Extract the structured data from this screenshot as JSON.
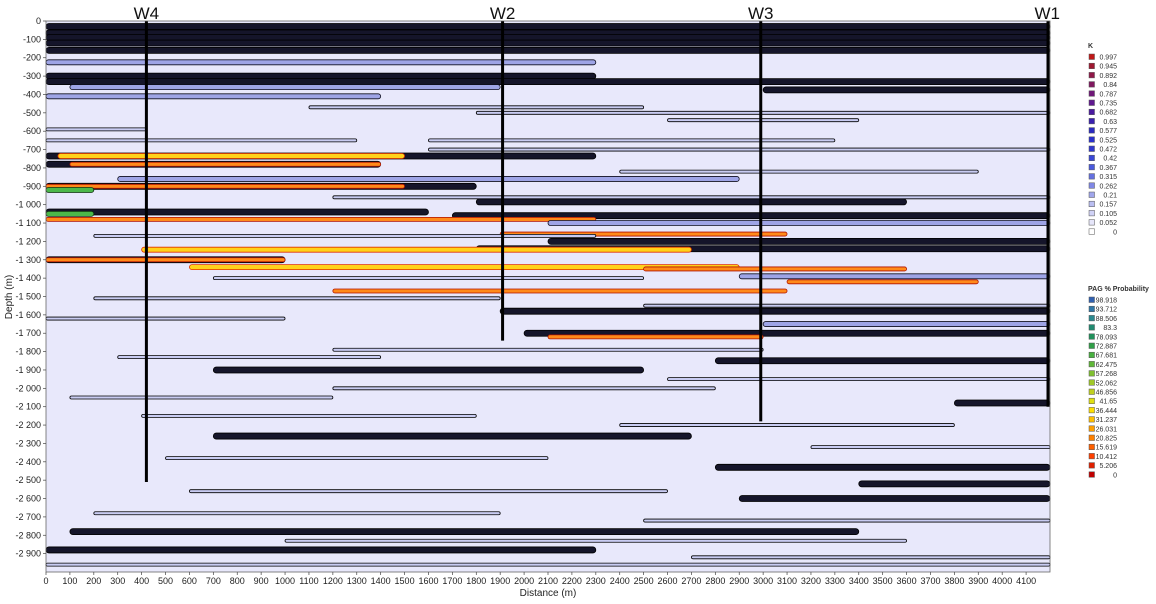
{
  "chart_data": {
    "type": "heatmap",
    "xlabel": "Distance (m)",
    "ylabel": "Depth (m)",
    "xlim": [
      0,
      4200
    ],
    "ylim": [
      -3000,
      0
    ],
    "x_ticks": [
      0,
      100,
      200,
      300,
      400,
      500,
      600,
      700,
      800,
      900,
      1000,
      1100,
      1200,
      1300,
      1400,
      1500,
      1600,
      1700,
      1800,
      1900,
      2000,
      2100,
      2200,
      2300,
      2400,
      2500,
      2600,
      2700,
      2800,
      2900,
      3000,
      3100,
      3200,
      3300,
      3400,
      3500,
      3600,
      3700,
      3800,
      3900,
      4000,
      4100
    ],
    "y_ticks": [
      0,
      -100,
      -200,
      -300,
      -400,
      -500,
      -600,
      -700,
      -800,
      -900,
      -1000,
      -1100,
      -1200,
      -1300,
      -1400,
      -1500,
      -1600,
      -1700,
      -1800,
      -1900,
      -2000,
      -2100,
      -2200,
      -2300,
      -2400,
      -2500,
      -2600,
      -2700,
      -2800,
      -2900
    ],
    "wells": [
      {
        "name": "W4",
        "x": 420,
        "bottom": -2510
      },
      {
        "name": "W2",
        "x": 1910,
        "bottom": -1740
      },
      {
        "name": "W3",
        "x": 2990,
        "bottom": -2180
      },
      {
        "name": "W1",
        "x": 4200,
        "bottom": -2100
      }
    ],
    "legends": [
      {
        "title": "K",
        "values": [
          "0.997",
          "0.945",
          "0.892",
          "0.84",
          "0.787",
          "0.735",
          "0.682",
          "0.63",
          "0.577",
          "0.525",
          "0.472",
          "0.42",
          "0.367",
          "0.315",
          "0.262",
          "0.21",
          "0.157",
          "0.105",
          "0.052",
          "0"
        ],
        "colors": [
          "#c01818",
          "#a01830",
          "#901848",
          "#801860",
          "#701878",
          "#601890",
          "#4a1aa0",
          "#3a20b0",
          "#2a2ac0",
          "#2a30cc",
          "#3038d0",
          "#3a48d8",
          "#4a5ade",
          "#6470e0",
          "#8088e6",
          "#a0a6ec",
          "#babef2",
          "#d0d2f6",
          "#e6e6fa",
          "#ffffff"
        ]
      },
      {
        "title": "PAG % Probability",
        "values": [
          "98.918",
          "93.712",
          "88.506",
          "83.3",
          "78.093",
          "72.887",
          "67.681",
          "62.475",
          "57.268",
          "52.062",
          "46.856",
          "41.65",
          "36.444",
          "31.237",
          "26.031",
          "20.825",
          "15.619",
          "10.412",
          "5.206",
          "0"
        ],
        "colors": [
          "#3060b0",
          "#2f78a8",
          "#2a8a90",
          "#208a70",
          "#20905a",
          "#30a048",
          "#48b040",
          "#60b838",
          "#80c030",
          "#a0c828",
          "#c0d020",
          "#e0e010",
          "#ffe000",
          "#ffc000",
          "#ffa000",
          "#ff8000",
          "#ff6000",
          "#ff4000",
          "#e02000",
          "#c00000"
        ]
      }
    ],
    "bands": [
      {
        "depth": -30,
        "x0": 0,
        "x1": 4200,
        "kind": "dark"
      },
      {
        "depth": -65,
        "x0": 0,
        "x1": 4200,
        "kind": "dark"
      },
      {
        "depth": -90,
        "x0": 0,
        "x1": 4200,
        "kind": "dark"
      },
      {
        "depth": -120,
        "x0": 0,
        "x1": 4200,
        "kind": "dark"
      },
      {
        "depth": -160,
        "x0": 0,
        "x1": 4200,
        "kind": "dark"
      },
      {
        "depth": -225,
        "x0": 0,
        "x1": 2300,
        "kind": "mid"
      },
      {
        "depth": -300,
        "x0": 0,
        "x1": 2300,
        "kind": "dark"
      },
      {
        "depth": -330,
        "x0": 0,
        "x1": 4200,
        "kind": "dark"
      },
      {
        "depth": -360,
        "x0": 100,
        "x1": 1900,
        "kind": "mid"
      },
      {
        "depth": -375,
        "x0": 3000,
        "x1": 4200,
        "kind": "dark"
      },
      {
        "depth": -410,
        "x0": 0,
        "x1": 1400,
        "kind": "mid"
      },
      {
        "depth": -470,
        "x0": 1100,
        "x1": 2500,
        "kind": "line"
      },
      {
        "depth": -500,
        "x0": 1800,
        "x1": 4200,
        "kind": "line"
      },
      {
        "depth": -540,
        "x0": 2600,
        "x1": 3400,
        "kind": "line"
      },
      {
        "depth": -590,
        "x0": 0,
        "x1": 420,
        "kind": "line"
      },
      {
        "depth": -650,
        "x0": 0,
        "x1": 1300,
        "kind": "line"
      },
      {
        "depth": -650,
        "x0": 1600,
        "x1": 3300,
        "kind": "line"
      },
      {
        "depth": -700,
        "x0": 1600,
        "x1": 4200,
        "kind": "line"
      },
      {
        "depth": -735,
        "x0": 0,
        "x1": 2300,
        "kind": "dark"
      },
      {
        "depth": -735,
        "x0": 50,
        "x1": 1500,
        "kind": "hot"
      },
      {
        "depth": -780,
        "x0": 0,
        "x1": 1400,
        "kind": "dark"
      },
      {
        "depth": -780,
        "x0": 100,
        "x1": 1400,
        "kind": "warm"
      },
      {
        "depth": -820,
        "x0": 2400,
        "x1": 3900,
        "kind": "line"
      },
      {
        "depth": -860,
        "x0": 300,
        "x1": 2900,
        "kind": "mid"
      },
      {
        "depth": -900,
        "x0": 0,
        "x1": 1800,
        "kind": "dark"
      },
      {
        "depth": -900,
        "x0": 0,
        "x1": 1500,
        "kind": "warm"
      },
      {
        "depth": -920,
        "x0": 0,
        "x1": 200,
        "kind": "green"
      },
      {
        "depth": -960,
        "x0": 1200,
        "x1": 4200,
        "kind": "line"
      },
      {
        "depth": -985,
        "x0": 1800,
        "x1": 3600,
        "kind": "dark"
      },
      {
        "depth": -1040,
        "x0": 0,
        "x1": 1600,
        "kind": "dark"
      },
      {
        "depth": -1050,
        "x0": 0,
        "x1": 200,
        "kind": "green"
      },
      {
        "depth": -1060,
        "x0": 1700,
        "x1": 4200,
        "kind": "dark"
      },
      {
        "depth": -1080,
        "x0": 0,
        "x1": 2300,
        "kind": "warm"
      },
      {
        "depth": -1100,
        "x0": 2100,
        "x1": 4200,
        "kind": "mid"
      },
      {
        "depth": -1160,
        "x0": 1900,
        "x1": 3100,
        "kind": "warm"
      },
      {
        "depth": -1170,
        "x0": 200,
        "x1": 2300,
        "kind": "line"
      },
      {
        "depth": -1200,
        "x0": 2100,
        "x1": 4200,
        "kind": "dark"
      },
      {
        "depth": -1240,
        "x0": 1800,
        "x1": 4200,
        "kind": "dark"
      },
      {
        "depth": -1245,
        "x0": 400,
        "x1": 2700,
        "kind": "hot"
      },
      {
        "depth": -1300,
        "x0": 0,
        "x1": 1000,
        "kind": "dark"
      },
      {
        "depth": -1300,
        "x0": 0,
        "x1": 1000,
        "kind": "warm"
      },
      {
        "depth": -1340,
        "x0": 600,
        "x1": 2900,
        "kind": "hot"
      },
      {
        "depth": -1350,
        "x0": 2500,
        "x1": 3600,
        "kind": "warm"
      },
      {
        "depth": -1390,
        "x0": 2900,
        "x1": 4200,
        "kind": "mid"
      },
      {
        "depth": -1400,
        "x0": 700,
        "x1": 2500,
        "kind": "line"
      },
      {
        "depth": -1420,
        "x0": 3100,
        "x1": 3900,
        "kind": "warm"
      },
      {
        "depth": -1470,
        "x0": 1200,
        "x1": 3100,
        "kind": "warm"
      },
      {
        "depth": -1510,
        "x0": 200,
        "x1": 1900,
        "kind": "line"
      },
      {
        "depth": -1550,
        "x0": 2500,
        "x1": 4200,
        "kind": "line"
      },
      {
        "depth": -1580,
        "x0": 1900,
        "x1": 4200,
        "kind": "dark"
      },
      {
        "depth": -1620,
        "x0": 0,
        "x1": 1000,
        "kind": "line"
      },
      {
        "depth": -1650,
        "x0": 3000,
        "x1": 4200,
        "kind": "mid"
      },
      {
        "depth": -1700,
        "x0": 2000,
        "x1": 4200,
        "kind": "dark"
      },
      {
        "depth": -1720,
        "x0": 2100,
        "x1": 3000,
        "kind": "warm"
      },
      {
        "depth": -1790,
        "x0": 1200,
        "x1": 3000,
        "kind": "line"
      },
      {
        "depth": -1830,
        "x0": 300,
        "x1": 1400,
        "kind": "line"
      },
      {
        "depth": -1850,
        "x0": 2800,
        "x1": 4200,
        "kind": "dark"
      },
      {
        "depth": -1900,
        "x0": 700,
        "x1": 2500,
        "kind": "dark"
      },
      {
        "depth": -1950,
        "x0": 2600,
        "x1": 4200,
        "kind": "line"
      },
      {
        "depth": -2000,
        "x0": 1200,
        "x1": 2800,
        "kind": "line"
      },
      {
        "depth": -2050,
        "x0": 100,
        "x1": 1200,
        "kind": "line"
      },
      {
        "depth": -2080,
        "x0": 3800,
        "x1": 4200,
        "kind": "dark"
      },
      {
        "depth": -2150,
        "x0": 400,
        "x1": 1800,
        "kind": "line"
      },
      {
        "depth": -2200,
        "x0": 2400,
        "x1": 3800,
        "kind": "line"
      },
      {
        "depth": -2260,
        "x0": 700,
        "x1": 2700,
        "kind": "dark"
      },
      {
        "depth": -2320,
        "x0": 3200,
        "x1": 4200,
        "kind": "line"
      },
      {
        "depth": -2380,
        "x0": 500,
        "x1": 2100,
        "kind": "line"
      },
      {
        "depth": -2430,
        "x0": 2800,
        "x1": 4200,
        "kind": "dark"
      },
      {
        "depth": -2520,
        "x0": 3400,
        "x1": 4200,
        "kind": "dark"
      },
      {
        "depth": -2560,
        "x0": 600,
        "x1": 2600,
        "kind": "line"
      },
      {
        "depth": -2600,
        "x0": 2900,
        "x1": 4200,
        "kind": "dark"
      },
      {
        "depth": -2680,
        "x0": 200,
        "x1": 1900,
        "kind": "line"
      },
      {
        "depth": -2720,
        "x0": 2500,
        "x1": 4200,
        "kind": "line"
      },
      {
        "depth": -2780,
        "x0": 100,
        "x1": 3400,
        "kind": "dark"
      },
      {
        "depth": -2830,
        "x0": 1000,
        "x1": 3600,
        "kind": "line"
      },
      {
        "depth": -2880,
        "x0": 0,
        "x1": 2300,
        "kind": "dark"
      },
      {
        "depth": -2920,
        "x0": 2700,
        "x1": 4200,
        "kind": "line"
      },
      {
        "depth": -2960,
        "x0": 0,
        "x1": 4200,
        "kind": "line"
      }
    ]
  }
}
